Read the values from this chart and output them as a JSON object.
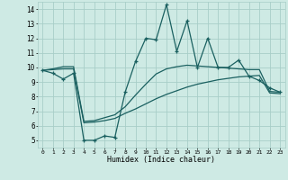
{
  "xlabel": "Humidex (Indice chaleur)",
  "bg_color": "#ceeae4",
  "grid_color": "#a8cec8",
  "line_color": "#1a6060",
  "xlim": [
    -0.5,
    23.5
  ],
  "ylim": [
    4.5,
    14.5
  ],
  "xticks": [
    0,
    1,
    2,
    3,
    4,
    5,
    6,
    7,
    8,
    9,
    10,
    11,
    12,
    13,
    14,
    15,
    16,
    17,
    18,
    19,
    20,
    21,
    22,
    23
  ],
  "yticks": [
    5,
    6,
    7,
    8,
    9,
    10,
    11,
    12,
    13,
    14
  ],
  "line1_x": [
    0,
    1,
    2,
    3,
    4,
    5,
    6,
    7,
    8,
    9,
    10,
    11,
    12,
    13,
    14,
    15,
    16,
    17,
    18,
    19,
    20,
    21,
    22,
    23
  ],
  "line1_y": [
    9.8,
    9.6,
    9.2,
    9.6,
    5.0,
    5.0,
    5.3,
    5.2,
    8.3,
    10.4,
    12.0,
    11.9,
    14.3,
    11.1,
    13.2,
    10.0,
    12.0,
    10.0,
    10.0,
    10.5,
    9.4,
    9.1,
    8.6,
    8.3
  ],
  "line2_x": [
    0,
    1,
    2,
    3,
    4,
    5,
    6,
    7,
    8,
    9,
    10,
    11,
    12,
    13,
    14,
    15,
    16,
    17,
    18,
    19,
    20,
    21,
    22,
    23
  ],
  "line2_y": [
    9.8,
    9.85,
    9.9,
    9.9,
    6.2,
    6.25,
    6.35,
    6.5,
    6.85,
    7.15,
    7.5,
    7.85,
    8.15,
    8.4,
    8.65,
    8.85,
    9.0,
    9.15,
    9.25,
    9.35,
    9.4,
    9.45,
    8.25,
    8.2
  ],
  "line3_x": [
    0,
    1,
    2,
    3,
    4,
    5,
    6,
    7,
    8,
    9,
    10,
    11,
    12,
    13,
    14,
    15,
    16,
    17,
    18,
    19,
    20,
    21,
    22,
    23
  ],
  "line3_y": [
    9.8,
    9.9,
    10.05,
    10.05,
    6.3,
    6.35,
    6.55,
    6.75,
    7.3,
    8.1,
    8.85,
    9.55,
    9.9,
    10.05,
    10.15,
    10.1,
    10.05,
    10.0,
    9.95,
    9.9,
    9.85,
    9.85,
    8.35,
    8.3
  ]
}
